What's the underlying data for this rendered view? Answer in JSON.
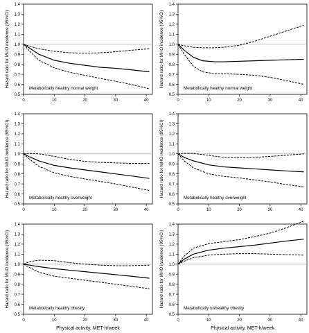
{
  "figure": {
    "x_axis_label": "Physical activity, MET-h/week"
  },
  "chart_data": [
    {
      "type": "line",
      "ylabel": "Hazard ratio for MUO incidence (95%CI)",
      "xlabel": "",
      "annotation": "Metabolically  healthy  normal weight",
      "xlim": [
        0,
        42
      ],
      "ylim": [
        0.5,
        1.4
      ],
      "xticks": [
        0,
        10,
        20,
        30,
        40
      ],
      "yticks": [
        0.5,
        0.6,
        0.7,
        0.8,
        0.9,
        1.0,
        1.1,
        1.2,
        1.3,
        1.4
      ],
      "reference_line": 1.0,
      "series": [
        {
          "x": [
            0,
            2,
            5,
            10,
            15,
            20,
            25,
            30,
            35,
            41
          ],
          "values": [
            1.0,
            0.96,
            0.9,
            0.84,
            0.81,
            0.79,
            0.77,
            0.76,
            0.745,
            0.725
          ]
        },
        {
          "x": [
            0,
            2,
            5,
            10,
            15,
            20,
            25,
            30,
            35,
            41
          ],
          "values": [
            1.0,
            0.98,
            0.955,
            0.93,
            0.915,
            0.91,
            0.915,
            0.925,
            0.94,
            0.955
          ],
          "style": "dashed"
        },
        {
          "x": [
            0,
            2,
            5,
            10,
            15,
            20,
            25,
            30,
            35,
            41
          ],
          "values": [
            1.0,
            0.93,
            0.84,
            0.765,
            0.72,
            0.69,
            0.66,
            0.63,
            0.6,
            0.555
          ],
          "style": "dashed"
        }
      ]
    },
    {
      "type": "line",
      "ylabel": "Hazard ratio for MHO incidence (95%CI)",
      "xlabel": "",
      "annotation": "Metabolically  healthy  normal weight",
      "xlim": [
        0,
        42
      ],
      "ylim": [
        0.5,
        1.4
      ],
      "xticks": [
        0,
        10,
        20,
        30,
        40
      ],
      "yticks": [
        0.5,
        0.6,
        0.7,
        0.8,
        0.9,
        1.0,
        1.1,
        1.2,
        1.3,
        1.4
      ],
      "reference_line": 1.0,
      "series": [
        {
          "x": [
            0,
            2,
            5,
            8,
            12,
            15,
            20,
            25,
            30,
            35,
            41
          ],
          "values": [
            1.0,
            0.94,
            0.87,
            0.835,
            0.825,
            0.825,
            0.83,
            0.835,
            0.84,
            0.845,
            0.85
          ]
        },
        {
          "x": [
            0,
            2,
            5,
            8,
            12,
            15,
            20,
            25,
            30,
            35,
            41
          ],
          "values": [
            1.0,
            0.985,
            0.97,
            0.965,
            0.965,
            0.97,
            0.99,
            1.03,
            1.08,
            1.13,
            1.19
          ],
          "style": "dashed"
        },
        {
          "x": [
            0,
            2,
            5,
            8,
            12,
            15,
            20,
            25,
            30,
            35,
            41
          ],
          "values": [
            1.0,
            0.9,
            0.78,
            0.725,
            0.705,
            0.705,
            0.7,
            0.69,
            0.67,
            0.64,
            0.6
          ],
          "style": "dashed"
        }
      ]
    },
    {
      "type": "line",
      "ylabel": "Hazard ratio for MUO incidence (95%CI)",
      "xlabel": "",
      "annotation": "Metabolically  healthy  overweight",
      "xlim": [
        0,
        42
      ],
      "ylim": [
        0.5,
        1.4
      ],
      "xticks": [
        0,
        10,
        20,
        30,
        40
      ],
      "yticks": [
        0.5,
        0.6,
        0.7,
        0.8,
        0.9,
        1.0,
        1.1,
        1.2,
        1.3,
        1.4
      ],
      "reference_line": 1.0,
      "series": [
        {
          "x": [
            0,
            2,
            5,
            10,
            15,
            20,
            25,
            30,
            35,
            41
          ],
          "values": [
            1.0,
            0.97,
            0.93,
            0.885,
            0.86,
            0.84,
            0.82,
            0.8,
            0.78,
            0.755
          ]
        },
        {
          "x": [
            0,
            2,
            5,
            10,
            15,
            20,
            25,
            30,
            35,
            41
          ],
          "values": [
            1.0,
            1.005,
            1.0,
            0.975,
            0.945,
            0.925,
            0.915,
            0.91,
            0.905,
            0.905
          ],
          "style": "dashed"
        },
        {
          "x": [
            0,
            2,
            5,
            10,
            15,
            20,
            25,
            30,
            35,
            41
          ],
          "values": [
            1.0,
            0.945,
            0.875,
            0.81,
            0.775,
            0.75,
            0.725,
            0.7,
            0.67,
            0.635
          ],
          "style": "dashed"
        }
      ]
    },
    {
      "type": "line",
      "ylabel": "Hazard ratio for MHO incidence (95%CI)",
      "xlabel": "",
      "annotation": "Metabolically  healthy  overweight",
      "xlim": [
        0,
        42
      ],
      "ylim": [
        0.5,
        1.4
      ],
      "xticks": [
        0,
        10,
        20,
        30,
        40
      ],
      "yticks": [
        0.5,
        0.6,
        0.7,
        0.8,
        0.9,
        1.0,
        1.1,
        1.2,
        1.3,
        1.4
      ],
      "reference_line": 1.0,
      "series": [
        {
          "x": [
            0,
            2,
            5,
            10,
            15,
            20,
            25,
            30,
            35,
            41
          ],
          "values": [
            1.0,
            0.965,
            0.93,
            0.89,
            0.87,
            0.86,
            0.85,
            0.84,
            0.83,
            0.82
          ]
        },
        {
          "x": [
            0,
            2,
            5,
            10,
            15,
            20,
            25,
            30,
            35,
            41
          ],
          "values": [
            1.0,
            1.005,
            1.005,
            0.985,
            0.965,
            0.96,
            0.965,
            0.975,
            0.985,
            1.0
          ],
          "style": "dashed"
        },
        {
          "x": [
            0,
            2,
            5,
            10,
            15,
            20,
            25,
            30,
            35,
            41
          ],
          "values": [
            1.0,
            0.93,
            0.86,
            0.8,
            0.775,
            0.76,
            0.74,
            0.72,
            0.695,
            0.67
          ],
          "style": "dashed"
        }
      ]
    },
    {
      "type": "line",
      "ylabel": "Hazard ratio for MUO incidence (95%CI)",
      "xlabel": "Physical activity, MET-h/week",
      "annotation": "Metabolically  healthy  obesity",
      "xlim": [
        0,
        42
      ],
      "ylim": [
        0.5,
        1.4
      ],
      "xticks": [
        0,
        10,
        20,
        30,
        40
      ],
      "yticks": [
        0.5,
        0.6,
        0.7,
        0.8,
        0.9,
        1.0,
        1.1,
        1.2,
        1.3,
        1.4
      ],
      "reference_line": 1.0,
      "series": [
        {
          "x": [
            0,
            2,
            5,
            10,
            15,
            20,
            25,
            30,
            35,
            41
          ],
          "values": [
            1.0,
            0.99,
            0.975,
            0.955,
            0.94,
            0.925,
            0.91,
            0.895,
            0.88,
            0.86
          ]
        },
        {
          "x": [
            0,
            2,
            5,
            10,
            15,
            20,
            25,
            30,
            35,
            41
          ],
          "values": [
            1.0,
            1.025,
            1.04,
            1.035,
            1.015,
            1.0,
            0.99,
            0.985,
            0.985,
            0.99
          ],
          "style": "dashed"
        },
        {
          "x": [
            0,
            2,
            5,
            10,
            15,
            20,
            25,
            30,
            35,
            41
          ],
          "values": [
            1.0,
            0.965,
            0.92,
            0.88,
            0.86,
            0.84,
            0.82,
            0.8,
            0.78,
            0.755
          ],
          "style": "dashed"
        }
      ]
    },
    {
      "type": "line",
      "ylabel": "Hazard ratio for MHO incidence (95%CI)",
      "xlabel": "Physical activity, MET-h/week",
      "annotation": "Metabolically  unhealthy  obesity",
      "xlim": [
        0,
        42
      ],
      "ylim": [
        0.5,
        1.4
      ],
      "xticks": [
        0,
        10,
        20,
        30,
        40
      ],
      "yticks": [
        0.5,
        0.6,
        0.7,
        0.8,
        0.9,
        1.0,
        1.1,
        1.2,
        1.3,
        1.4
      ],
      "reference_line": 1.0,
      "series": [
        {
          "x": [
            0,
            2,
            5,
            10,
            15,
            20,
            25,
            30,
            35,
            41
          ],
          "values": [
            1.0,
            1.05,
            1.1,
            1.14,
            1.16,
            1.175,
            1.19,
            1.21,
            1.23,
            1.25
          ]
        },
        {
          "x": [
            0,
            2,
            5,
            10,
            15,
            20,
            25,
            30,
            35,
            41
          ],
          "values": [
            1.0,
            1.08,
            1.16,
            1.205,
            1.225,
            1.245,
            1.275,
            1.31,
            1.36,
            1.43
          ],
          "style": "dashed"
        },
        {
          "x": [
            0,
            2,
            5,
            10,
            15,
            20,
            25,
            30,
            35,
            41
          ],
          "values": [
            1.0,
            1.03,
            1.065,
            1.09,
            1.1,
            1.105,
            1.105,
            1.1,
            1.095,
            1.09
          ],
          "style": "dashed"
        }
      ]
    }
  ]
}
